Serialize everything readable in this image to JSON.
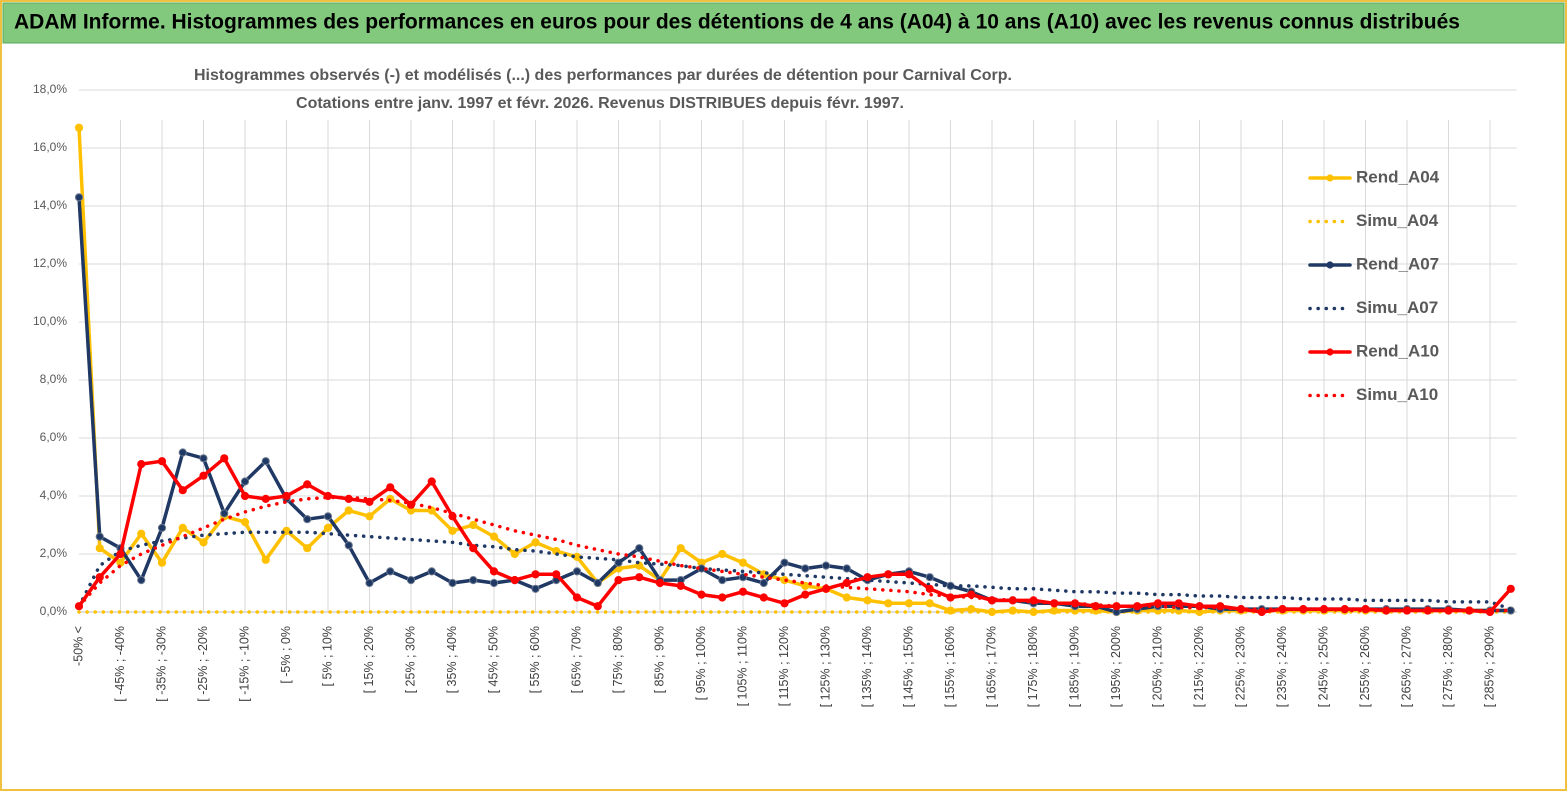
{
  "chart_data": {
    "type": "line",
    "header": "ADAM Informe. Histogrammes des performances en euros pour des détentions de 4 ans (A04) à 10 ans (A10) avec les revenus connus distribués",
    "title": "Histogrammes observés (-)  et modélisés (...) des performances par durées de détention pour Carnival Corp.",
    "subtitle": "Cotations entre janv. 1997 et févr. 2026. Revenus DISTRIBUES depuis févr. 1997.",
    "categories": [
      "-50% <",
      null,
      "[ -45% ; -40%",
      null,
      "[ -35% ; -30%",
      null,
      "[ -25% ; -20%",
      null,
      "[ -15% ; -10%",
      null,
      "[ -5% ; 0%",
      null,
      "[ 5% ; 10%",
      null,
      "[ 15% ; 20%",
      null,
      "[ 25% ; 30%",
      null,
      "[ 35% ; 40%",
      null,
      "[ 45% ; 50%",
      null,
      "[ 55% ; 60%",
      null,
      "[ 65% ; 70%",
      null,
      "[ 75% ; 80%",
      null,
      "[ 85% ; 90%",
      null,
      "[ 95% ; 100%",
      null,
      "[ 105% ; 110%",
      null,
      "[ 115% ; 120%",
      null,
      "[ 125% ; 130%",
      null,
      "[ 135% ; 140%",
      null,
      "[ 145% ; 150%",
      null,
      "[ 155% ; 160%",
      null,
      "[ 165% ; 170%",
      null,
      "[ 175% ; 180%",
      null,
      "[ 185% ; 190%",
      null,
      "[ 195% ; 200%",
      null,
      "[ 205% ; 210%",
      null,
      "[ 215% ; 220%",
      null,
      "[ 225% ; 230%",
      null,
      "[ 235% ; 240%",
      null,
      "[ 245% ; 250%",
      null,
      "[ 255% ; 260%",
      null,
      "[ 265% ; 270%",
      null,
      "[ 275% ; 280%",
      null,
      "[ 285% ; 290%",
      null
    ],
    "ylim": [
      0,
      18
    ],
    "yticks": [
      {
        "value": 0,
        "label": "0,0%"
      },
      {
        "value": 2,
        "label": "2,0%"
      },
      {
        "value": 4,
        "label": "4,0%"
      },
      {
        "value": 6,
        "label": "6,0%"
      },
      {
        "value": 8,
        "label": "8,0%"
      },
      {
        "value": 10,
        "label": "10,0%"
      },
      {
        "value": 12,
        "label": "12,0%"
      },
      {
        "value": 14,
        "label": "14,0%"
      },
      {
        "value": 16,
        "label": "16,0%"
      },
      {
        "value": 18,
        "label": "18,0%"
      }
    ],
    "grid": true,
    "legend": "right",
    "series": [
      {
        "name": "Rend_A04",
        "color": "#FFC000",
        "style": "solid",
        "markers": true,
        "values": [
          16.7,
          2.2,
          1.7,
          2.7,
          1.7,
          2.9,
          2.4,
          3.3,
          3.1,
          1.8,
          2.8,
          2.2,
          2.9,
          3.5,
          3.3,
          3.9,
          3.5,
          3.5,
          2.8,
          3.0,
          2.6,
          2.0,
          2.4,
          2.1,
          1.9,
          1.0,
          1.5,
          1.6,
          1.1,
          2.2,
          1.7,
          2.0,
          1.7,
          1.3,
          1.1,
          0.9,
          0.8,
          0.5,
          0.4,
          0.3,
          0.3,
          0.3,
          0.05,
          0.1,
          0.0,
          0.05,
          0.0,
          0.05,
          0.05,
          0.05,
          0.0,
          0.05,
          0.05,
          0.05,
          0.0,
          0.05,
          0.05,
          0.05,
          0.05,
          0.05,
          0.05,
          0.05,
          0.05,
          0.05,
          0.05,
          0.05,
          0.05,
          0.05,
          0.05,
          0.05
        ]
      },
      {
        "name": "Simu_A04",
        "color": "#FFC000",
        "style": "dotted",
        "markers": false,
        "values": [
          0,
          0,
          0,
          0,
          0,
          0,
          0,
          0,
          0,
          0,
          0,
          0,
          0,
          0,
          0,
          0,
          0,
          0,
          0,
          0,
          0,
          0,
          0,
          0,
          0,
          0,
          0,
          0,
          0,
          0,
          0,
          0,
          0,
          0,
          0,
          0,
          0,
          0,
          0,
          0,
          0,
          0,
          0,
          0,
          0,
          0,
          0,
          0,
          0,
          0,
          0,
          0,
          0,
          0,
          0,
          0,
          0,
          0,
          0,
          0,
          0,
          0,
          0,
          0,
          0,
          0,
          0,
          0,
          0,
          0
        ]
      },
      {
        "name": "Rend_A07",
        "color": "#1F3864",
        "style": "solid",
        "markers": true,
        "values": [
          14.3,
          2.6,
          2.2,
          1.1,
          2.9,
          5.5,
          5.3,
          3.4,
          4.5,
          5.2,
          3.9,
          3.2,
          3.3,
          2.3,
          1.0,
          1.4,
          1.1,
          1.4,
          1.0,
          1.1,
          1.0,
          1.1,
          0.8,
          1.1,
          1.4,
          1.0,
          1.7,
          2.2,
          1.1,
          1.1,
          1.5,
          1.1,
          1.2,
          1.0,
          1.7,
          1.5,
          1.6,
          1.5,
          1.1,
          1.3,
          1.4,
          1.2,
          0.9,
          0.7,
          0.4,
          0.4,
          0.3,
          0.3,
          0.2,
          0.2,
          0.0,
          0.1,
          0.2,
          0.2,
          0.2,
          0.1,
          0.1,
          0.1,
          0.1,
          0.1,
          0.1,
          0.1,
          0.1,
          0.1,
          0.1,
          0.1,
          0.1,
          0.05,
          0.05,
          0.05
        ]
      },
      {
        "name": "Simu_A07",
        "color": "#1F3864",
        "style": "dotted",
        "markers": false,
        "values": [
          0.2,
          1.6,
          2.1,
          2.3,
          2.45,
          2.55,
          2.65,
          2.7,
          2.75,
          2.75,
          2.75,
          2.75,
          2.7,
          2.65,
          2.6,
          2.55,
          2.5,
          2.45,
          2.4,
          2.3,
          2.25,
          2.15,
          2.1,
          2.0,
          1.9,
          1.85,
          1.8,
          1.7,
          1.65,
          1.6,
          1.5,
          1.45,
          1.4,
          1.35,
          1.3,
          1.25,
          1.2,
          1.15,
          1.1,
          1.05,
          1.0,
          0.95,
          0.9,
          0.9,
          0.85,
          0.8,
          0.8,
          0.75,
          0.7,
          0.7,
          0.65,
          0.65,
          0.6,
          0.6,
          0.55,
          0.55,
          0.5,
          0.5,
          0.5,
          0.45,
          0.45,
          0.45,
          0.4,
          0.4,
          0.4,
          0.4,
          0.35,
          0.35,
          0.35,
          0.1
        ]
      },
      {
        "name": "Rend_A10",
        "color": "#FF0000",
        "style": "solid",
        "markers": true,
        "values": [
          0.2,
          1.2,
          2.0,
          5.1,
          5.2,
          4.2,
          4.7,
          5.3,
          4.0,
          3.9,
          4.0,
          4.4,
          4.0,
          3.9,
          3.8,
          4.3,
          3.7,
          4.5,
          3.3,
          2.2,
          1.4,
          1.1,
          1.3,
          1.3,
          0.5,
          0.2,
          1.1,
          1.2,
          1.0,
          0.9,
          0.6,
          0.5,
          0.7,
          0.5,
          0.3,
          0.6,
          0.8,
          1.0,
          1.2,
          1.3,
          1.3,
          0.8,
          0.5,
          0.6,
          0.4,
          0.4,
          0.4,
          0.3,
          0.3,
          0.2,
          0.2,
          0.2,
          0.3,
          0.3,
          0.2,
          0.2,
          0.1,
          0.0,
          0.1,
          0.1,
          0.1,
          0.1,
          0.1,
          0.05,
          0.05,
          0.05,
          0.05,
          0.05,
          0.0,
          0.8
        ]
      },
      {
        "name": "Simu_A10",
        "color": "#FF0000",
        "style": "dotted",
        "markers": false,
        "values": [
          0.2,
          1.0,
          1.6,
          2.0,
          2.3,
          2.6,
          2.9,
          3.2,
          3.45,
          3.65,
          3.8,
          3.9,
          3.95,
          3.95,
          3.9,
          3.85,
          3.75,
          3.6,
          3.4,
          3.2,
          3.0,
          2.8,
          2.65,
          2.5,
          2.3,
          2.15,
          2.0,
          1.9,
          1.75,
          1.6,
          1.5,
          1.4,
          1.3,
          1.2,
          1.1,
          1.0,
          0.9,
          0.85,
          0.8,
          0.75,
          0.7,
          0.6,
          0.55,
          0.5,
          0.45,
          0.4,
          0.35,
          0.3,
          0.3,
          0.25,
          0.2,
          0.2,
          0.2,
          0.15,
          0.15,
          0.15,
          0.1,
          0.1,
          0.1,
          0.1,
          0.1,
          0.05,
          0.05,
          0.05,
          0.05,
          0.05,
          0.05,
          0.05,
          0.05,
          0.05
        ]
      }
    ]
  }
}
